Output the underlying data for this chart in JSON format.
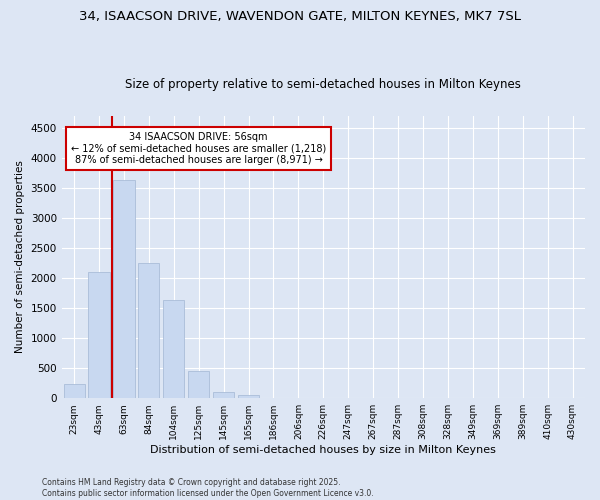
{
  "title1": "34, ISAACSON DRIVE, WAVENDON GATE, MILTON KEYNES, MK7 7SL",
  "title2": "Size of property relative to semi-detached houses in Milton Keynes",
  "xlabel": "Distribution of semi-detached houses by size in Milton Keynes",
  "ylabel": "Number of semi-detached properties",
  "footnote": "Contains HM Land Registry data © Crown copyright and database right 2025.\nContains public sector information licensed under the Open Government Licence v3.0.",
  "bar_labels": [
    "23sqm",
    "43sqm",
    "63sqm",
    "84sqm",
    "104sqm",
    "125sqm",
    "145sqm",
    "165sqm",
    "186sqm",
    "206sqm",
    "226sqm",
    "247sqm",
    "267sqm",
    "287sqm",
    "308sqm",
    "328sqm",
    "349sqm",
    "369sqm",
    "389sqm",
    "410sqm",
    "430sqm"
  ],
  "bar_values": [
    240,
    2100,
    3630,
    2250,
    1630,
    450,
    100,
    55,
    0,
    0,
    0,
    0,
    0,
    0,
    0,
    0,
    0,
    0,
    0,
    0,
    0
  ],
  "bar_color": "#c8d8f0",
  "bar_edge_color": "#aabdd8",
  "background_color": "#dde6f4",
  "grid_color": "#ffffff",
  "annotation_text": "34 ISAACSON DRIVE: 56sqm\n← 12% of semi-detached houses are smaller (1,218)\n87% of semi-detached houses are larger (8,971) →",
  "annotation_box_color": "#ffffff",
  "annotation_border_color": "#cc0000",
  "ylim": [
    0,
    4700
  ],
  "yticks": [
    0,
    500,
    1000,
    1500,
    2000,
    2500,
    3000,
    3500,
    4000,
    4500
  ],
  "red_line_x": 1.5,
  "title1_fontsize": 9.5,
  "title2_fontsize": 8.5,
  "ylabel_fontsize": 7.5,
  "xlabel_fontsize": 8,
  "footnote_fontsize": 5.5
}
